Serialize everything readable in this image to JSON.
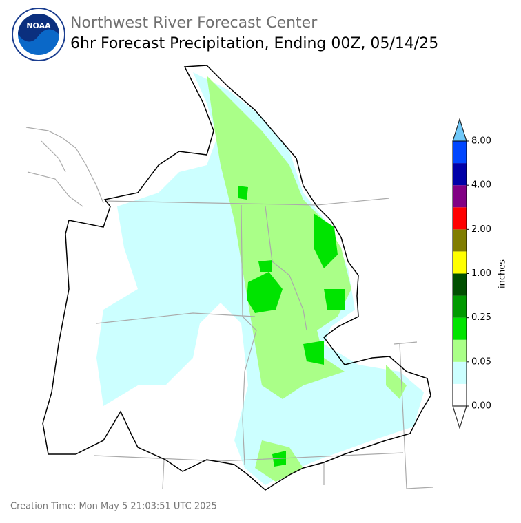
{
  "header": {
    "logo_text": "NOAA",
    "title": "Northwest River Forecast Center",
    "subtitle": "6hr Forecast Precipitation, Ending 00Z, 05/14/25"
  },
  "colorbar": {
    "label": "inches",
    "ticks": [
      {
        "value": 0,
        "label": "0.00"
      },
      {
        "value": 0.05,
        "label": "0.05"
      },
      {
        "value": 0.25,
        "label": "0.25"
      },
      {
        "value": 1,
        "label": "1.00"
      },
      {
        "value": 2,
        "label": "2.00"
      },
      {
        "value": 4,
        "label": "4.00"
      },
      {
        "value": 8,
        "label": "8.00"
      }
    ],
    "colors": [
      "#ffffff",
      "#ccffff",
      "#aaff88",
      "#00e400",
      "#009a00",
      "#004f00",
      "#ffff00",
      "#807d00",
      "#ff0000",
      "#820084",
      "#0000a8",
      "#0046ff"
    ],
    "under_color": "#ffffff",
    "over_color": "#70c8f8"
  },
  "footer": {
    "creation_time": "Creation Time: Mon May 5 21:03:51 UTC 2025"
  }
}
